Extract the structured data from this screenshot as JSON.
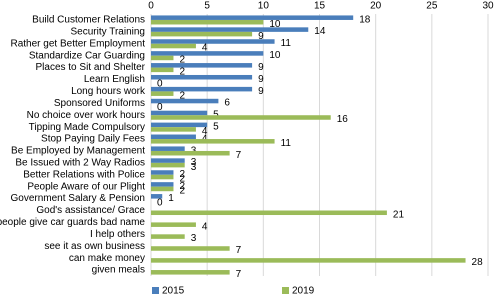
{
  "chart_data": {
    "type": "hbar",
    "categories": [
      "Build Customer Relations",
      "Security Training",
      "Rather get Better Employment",
      "Standardize Car Guarding",
      "Places to Sit and Shelter",
      "Learn English",
      "Long hours work",
      "Sponsored Uniforms",
      "No choice over work hours",
      "Tipping Made Compulsory",
      "Stop Paying Daily Fees",
      "Be Employed by Management",
      "Be Issued with 2 Way Radios",
      "Better Relations with Police",
      "People Aware of our Plight",
      "Government Salary & Pension",
      "God's assistance/ Grace",
      "people give car guards bad name",
      "I help others",
      "see it as own business",
      "can make money",
      "given meals"
    ],
    "series": [
      {
        "name": "2015",
        "color": "#4a7ebb",
        "values": [
          18,
          14,
          11,
          10,
          9,
          9,
          9,
          6,
          5,
          5,
          4,
          3,
          3,
          2,
          2,
          1,
          null,
          null,
          null,
          null,
          null,
          null
        ]
      },
      {
        "name": "2019",
        "color": "#9bbb59",
        "values": [
          10,
          9,
          4,
          2,
          2,
          0,
          2,
          0,
          16,
          4,
          11,
          7,
          3,
          2,
          2,
          0,
          21,
          4,
          3,
          7,
          28,
          7
        ]
      }
    ],
    "xlim": [
      0,
      30
    ],
    "xticks": [
      0,
      5,
      10,
      15,
      20,
      25,
      30
    ],
    "grid": true,
    "legend": "bottom"
  }
}
